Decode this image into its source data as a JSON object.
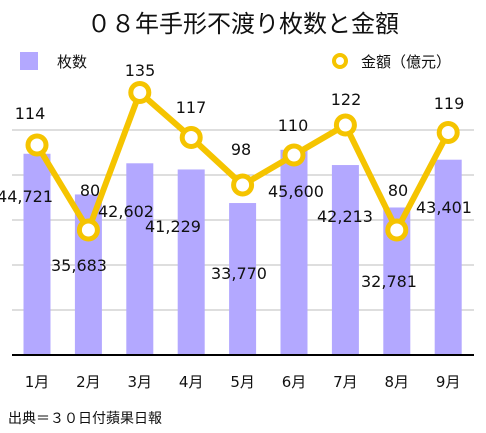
{
  "chart_data": {
    "type": "bar+line",
    "title": "０８年手形不渡り枚数と金額",
    "categories": [
      "1月",
      "2月",
      "3月",
      "4月",
      "5月",
      "6月",
      "7月",
      "8月",
      "9月"
    ],
    "series": [
      {
        "name": "枚数",
        "type": "bar",
        "axis": "left",
        "color": "#b3a8ff",
        "values": [
          44721,
          35683,
          42602,
          41229,
          33770,
          45600,
          42213,
          32781,
          43401
        ],
        "labels": [
          "44,721",
          "35,683",
          "42,602",
          "41,229",
          "33,770",
          "45,600",
          "42,213",
          "32,781",
          "43,401"
        ]
      },
      {
        "name": "金額（億元）",
        "type": "line",
        "axis": "right",
        "color": "#f5c400",
        "values": [
          114,
          80,
          135,
          117,
          98,
          110,
          122,
          80,
          119
        ],
        "labels": [
          "114",
          "80",
          "135",
          "117",
          "98",
          "110",
          "122",
          "80",
          "119"
        ]
      }
    ],
    "bar_axis_range": [
      0,
      60000
    ],
    "line_axis_range": [
      30,
      140
    ],
    "grid": true,
    "axes_tick_labels_visible": false,
    "legend_placement": "top",
    "source_note": "出典＝３０日付蘋果日報"
  }
}
